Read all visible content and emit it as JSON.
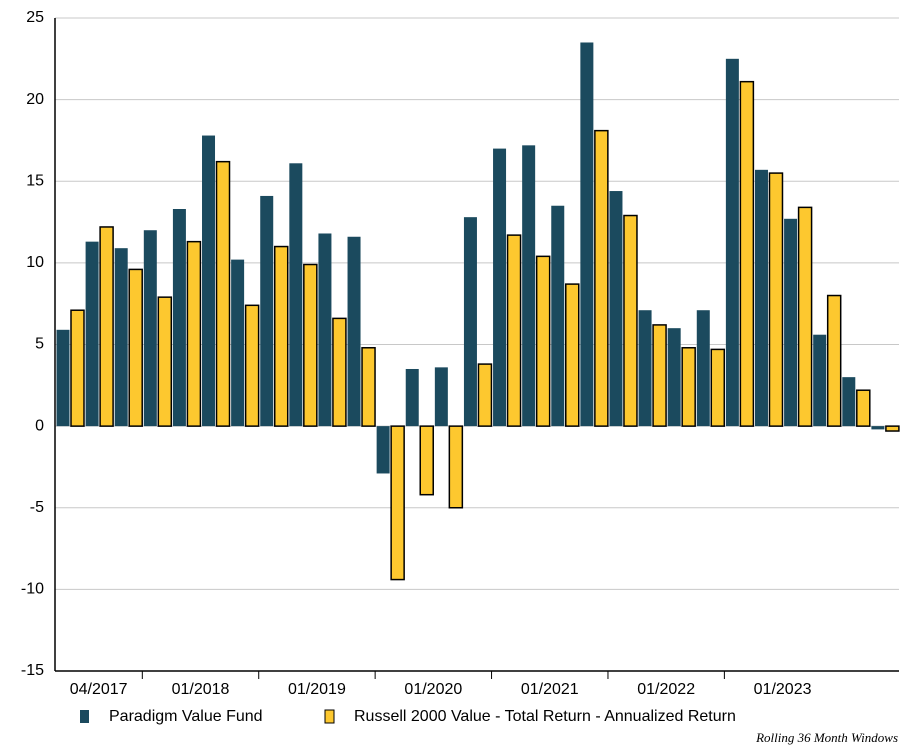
{
  "chart_data": {
    "type": "bar",
    "categories": [
      "04/2017",
      null,
      null,
      "01/2018",
      null,
      null,
      null,
      "01/2019",
      null,
      null,
      null,
      "01/2020",
      null,
      null,
      null,
      "01/2021",
      null,
      null,
      null,
      "01/2022",
      null,
      null,
      null,
      "01/2023",
      null,
      null,
      null,
      null,
      null
    ],
    "series": [
      {
        "name": "Paradigm Value Fund",
        "color": "#1b4a5e",
        "values": [
          5.9,
          11.3,
          10.9,
          12.0,
          13.3,
          17.8,
          10.2,
          14.1,
          16.1,
          11.8,
          11.6,
          -2.9,
          3.5,
          3.6,
          12.8,
          17.0,
          17.2,
          13.5,
          23.5,
          14.4,
          7.1,
          6.0,
          7.1,
          22.5,
          15.7,
          12.7,
          5.6,
          3.0,
          -0.2
        ]
      },
      {
        "name": "Russell 2000 Value - Total Return - Annualized Return",
        "color": "#fdc82f",
        "values": [
          7.1,
          12.2,
          9.6,
          7.9,
          11.3,
          16.2,
          7.4,
          11.0,
          9.9,
          6.6,
          4.8,
          -9.4,
          -4.2,
          -5.0,
          3.8,
          11.7,
          10.4,
          8.7,
          18.1,
          12.9,
          6.2,
          4.8,
          4.7,
          21.1,
          15.5,
          13.4,
          8.0,
          2.2,
          -0.3
        ]
      }
    ],
    "ylim": [
      -15,
      25
    ],
    "yticks": [
      -15,
      -10,
      -5,
      0,
      5,
      10,
      15,
      20,
      25
    ],
    "grid": true,
    "footnote": "Rolling 36 Month Windows"
  }
}
